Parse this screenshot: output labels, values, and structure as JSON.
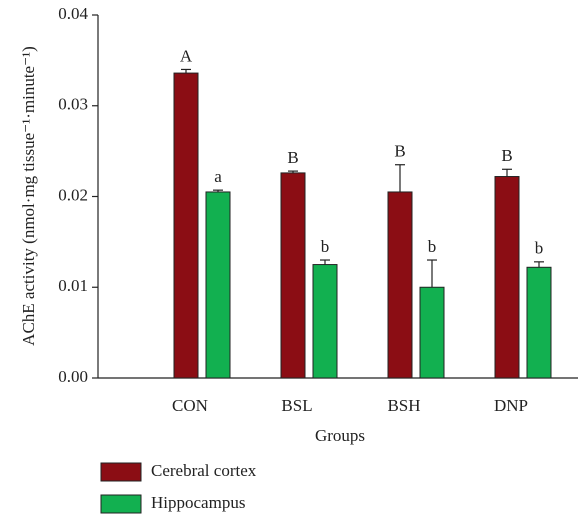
{
  "chart_data": {
    "type": "bar",
    "ylabel": "AChE activity (nmol·mg tissue⁻¹·minute⁻¹)",
    "xlabel": "Groups",
    "categories": [
      "CON",
      "BSL",
      "BSH",
      "DNP"
    ],
    "series": [
      {
        "name": "Cerebral cortex",
        "color": "#8b0d14",
        "values": [
          0.0336,
          0.0226,
          0.0205,
          0.0222
        ],
        "errors": [
          0.0004,
          0.0002,
          0.003,
          0.0008
        ],
        "labels": [
          "A",
          "B",
          "B",
          "B"
        ]
      },
      {
        "name": "Hippocampus",
        "color": "#12b050",
        "values": [
          0.0205,
          0.0125,
          0.01,
          0.0122
        ],
        "errors": [
          0.0002,
          0.0005,
          0.003,
          0.0006
        ],
        "labels": [
          "a",
          "b",
          "b",
          "b"
        ]
      }
    ],
    "ylim": [
      0,
      0.04
    ],
    "yticks": [
      {
        "value": 0,
        "label": "0.00"
      },
      0.01,
      0.02,
      0.03,
      0.04
    ],
    "legend": "bottom-left"
  }
}
